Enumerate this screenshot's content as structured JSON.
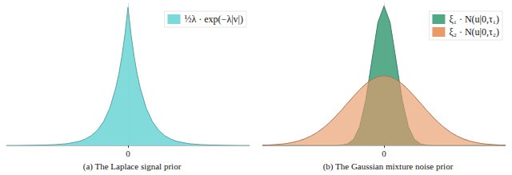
{
  "chart_data": [
    {
      "type": "area",
      "title": "(a) The Laplace signal prior",
      "x": [
        -5,
        -4.5,
        -4,
        -3.5,
        -3,
        -2.5,
        -2,
        -1.75,
        -1.5,
        -1.25,
        -1,
        -0.75,
        -0.5,
        -0.375,
        -0.25,
        -0.125,
        0,
        0.125,
        0.25,
        0.375,
        0.5,
        0.75,
        1,
        1.25,
        1.5,
        1.75,
        2,
        2.5,
        3,
        3.5,
        4,
        4.5,
        5
      ],
      "series": [
        {
          "name": "½λ · exp(−λ|v|)",
          "color": "#7ad9d9",
          "values": [
            0,
            0,
            0.001,
            0.002,
            0.005,
            0.011,
            0.026,
            0.041,
            0.063,
            0.098,
            0.152,
            0.235,
            0.365,
            0.454,
            0.565,
            0.703,
            0.875,
            0.703,
            0.565,
            0.454,
            0.365,
            0.235,
            0.152,
            0.098,
            0.063,
            0.041,
            0.026,
            0.011,
            0.005,
            0.002,
            0.001,
            0,
            0
          ]
        }
      ],
      "xlim": [
        -5,
        5
      ],
      "xticks": [
        0
      ],
      "ylim": [
        0,
        0.9
      ],
      "grid": false,
      "legend": "upper right",
      "tick_labels": "x"
    },
    {
      "type": "area",
      "title": "(b) The Gaussian mixture noise prior",
      "x": [
        -5,
        -4.75,
        -4.5,
        -4.25,
        -4,
        -3.75,
        -3.5,
        -3.25,
        -3,
        -2.75,
        -2.5,
        -2.25,
        -2,
        -1.75,
        -1.5,
        -1.25,
        -1,
        -0.75,
        -0.5,
        -0.25,
        0,
        0.25,
        0.5,
        0.75,
        1,
        1.25,
        1.5,
        1.75,
        2,
        2.25,
        2.5,
        2.75,
        3,
        3.25,
        3.5,
        3.75,
        4,
        4.25,
        4.5,
        4.75,
        5
      ],
      "series": [
        {
          "name": "ξ₁ · N(u|0,τ₁)",
          "color": "#4fa886",
          "values": [
            0,
            0,
            0,
            0,
            0,
            0,
            0,
            0,
            0,
            0,
            0,
            0,
            0,
            0.002,
            0.011,
            0.044,
            0.135,
            0.325,
            0.607,
            0.882,
            1,
            0.882,
            0.607,
            0.325,
            0.135,
            0.044,
            0.011,
            0.002,
            0,
            0,
            0,
            0,
            0,
            0,
            0,
            0,
            0,
            0,
            0,
            0,
            0
          ]
        },
        {
          "name": "ξ₂ · N(u|0,τ₂)",
          "color": "#e89a68",
          "values": [
            0.002,
            0.003,
            0.006,
            0.009,
            0.014,
            0.022,
            0.033,
            0.048,
            0.068,
            0.093,
            0.125,
            0.162,
            0.206,
            0.253,
            0.303,
            0.353,
            0.4,
            0.441,
            0.473,
            0.493,
            0.5,
            0.493,
            0.473,
            0.441,
            0.4,
            0.353,
            0.303,
            0.253,
            0.206,
            0.162,
            0.125,
            0.093,
            0.068,
            0.048,
            0.033,
            0.022,
            0.014,
            0.009,
            0.006,
            0.003,
            0.002
          ]
        }
      ],
      "xlim": [
        -5,
        5
      ],
      "xticks": [
        0
      ],
      "ylim": [
        0,
        1.02
      ],
      "grid": false,
      "legend": "upper right",
      "tick_labels": "x"
    }
  ]
}
